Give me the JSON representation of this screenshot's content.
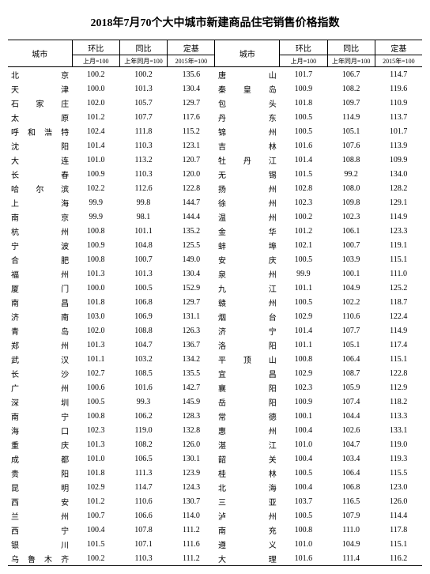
{
  "title": "2018年7月70个大中城市新建商品住宅销售价格指数",
  "headers": {
    "city": "城市",
    "mom": "环比",
    "yoy": "同比",
    "base": "定基",
    "mom_sub": "上月=100",
    "yoy_sub": "上年同月=100",
    "base_sub": "2015年=100"
  },
  "left": [
    {
      "city": "北　　京",
      "mom": "100.2",
      "yoy": "100.2",
      "base": "135.6"
    },
    {
      "city": "天　　津",
      "mom": "100.0",
      "yoy": "101.3",
      "base": "130.4"
    },
    {
      "city": "石 家 庄",
      "mom": "102.0",
      "yoy": "105.7",
      "base": "129.7"
    },
    {
      "city": "太　　原",
      "mom": "101.2",
      "yoy": "107.7",
      "base": "117.6"
    },
    {
      "city": "呼和浩特",
      "mom": "102.4",
      "yoy": "111.8",
      "base": "115.2"
    },
    {
      "city": "沈　　阳",
      "mom": "101.4",
      "yoy": "110.3",
      "base": "123.1"
    },
    {
      "city": "大　　连",
      "mom": "101.0",
      "yoy": "113.2",
      "base": "120.7"
    },
    {
      "city": "长　　春",
      "mom": "100.9",
      "yoy": "110.3",
      "base": "120.0"
    },
    {
      "city": "哈 尔 滨",
      "mom": "102.2",
      "yoy": "112.6",
      "base": "122.8"
    },
    {
      "city": "上　　海",
      "mom": "99.9",
      "yoy": "99.8",
      "base": "144.7"
    },
    {
      "city": "南　　京",
      "mom": "99.9",
      "yoy": "98.1",
      "base": "144.4"
    },
    {
      "city": "杭　　州",
      "mom": "100.8",
      "yoy": "101.1",
      "base": "135.2"
    },
    {
      "city": "宁　　波",
      "mom": "100.9",
      "yoy": "104.8",
      "base": "125.5"
    },
    {
      "city": "合　　肥",
      "mom": "100.8",
      "yoy": "100.7",
      "base": "149.0"
    },
    {
      "city": "福　　州",
      "mom": "101.3",
      "yoy": "101.3",
      "base": "130.4"
    },
    {
      "city": "厦　　门",
      "mom": "100.0",
      "yoy": "100.5",
      "base": "152.9"
    },
    {
      "city": "南　　昌",
      "mom": "101.8",
      "yoy": "106.8",
      "base": "129.7"
    },
    {
      "city": "济　　南",
      "mom": "103.0",
      "yoy": "106.9",
      "base": "131.1"
    },
    {
      "city": "青　　岛",
      "mom": "102.0",
      "yoy": "108.8",
      "base": "126.3"
    },
    {
      "city": "郑　　州",
      "mom": "101.3",
      "yoy": "104.7",
      "base": "136.7"
    },
    {
      "city": "武　　汉",
      "mom": "101.1",
      "yoy": "103.2",
      "base": "134.2"
    },
    {
      "city": "长　　沙",
      "mom": "102.7",
      "yoy": "108.5",
      "base": "135.5"
    },
    {
      "city": "广　　州",
      "mom": "100.6",
      "yoy": "101.6",
      "base": "142.7"
    },
    {
      "city": "深　　圳",
      "mom": "100.5",
      "yoy": "99.3",
      "base": "145.9"
    },
    {
      "city": "南　　宁",
      "mom": "100.8",
      "yoy": "106.2",
      "base": "128.3"
    },
    {
      "city": "海　　口",
      "mom": "102.3",
      "yoy": "119.0",
      "base": "132.8"
    },
    {
      "city": "重　　庆",
      "mom": "101.3",
      "yoy": "108.2",
      "base": "126.0"
    },
    {
      "city": "成　　都",
      "mom": "101.0",
      "yoy": "106.5",
      "base": "130.1"
    },
    {
      "city": "贵　　阳",
      "mom": "101.8",
      "yoy": "111.3",
      "base": "123.9"
    },
    {
      "city": "昆　　明",
      "mom": "102.9",
      "yoy": "114.7",
      "base": "124.3"
    },
    {
      "city": "西　　安",
      "mom": "101.2",
      "yoy": "110.6",
      "base": "130.7"
    },
    {
      "city": "兰　　州",
      "mom": "100.7",
      "yoy": "106.6",
      "base": "114.0"
    },
    {
      "city": "西　　宁",
      "mom": "100.4",
      "yoy": "107.8",
      "base": "111.2"
    },
    {
      "city": "银　　川",
      "mom": "101.5",
      "yoy": "107.1",
      "base": "111.6"
    },
    {
      "city": "乌鲁木齐",
      "mom": "100.2",
      "yoy": "110.3",
      "base": "111.2"
    }
  ],
  "right": [
    {
      "city": "唐　　山",
      "mom": "101.7",
      "yoy": "106.7",
      "base": "114.7"
    },
    {
      "city": "秦 皇 岛",
      "mom": "100.9",
      "yoy": "108.2",
      "base": "119.6"
    },
    {
      "city": "包　　头",
      "mom": "101.8",
      "yoy": "109.7",
      "base": "110.9"
    },
    {
      "city": "丹　　东",
      "mom": "100.5",
      "yoy": "114.9",
      "base": "113.7"
    },
    {
      "city": "锦　　州",
      "mom": "100.5",
      "yoy": "105.1",
      "base": "101.7"
    },
    {
      "city": "吉　　林",
      "mom": "101.6",
      "yoy": "107.6",
      "base": "113.9"
    },
    {
      "city": "牡 丹 江",
      "mom": "101.4",
      "yoy": "108.8",
      "base": "109.9"
    },
    {
      "city": "无　　锡",
      "mom": "101.5",
      "yoy": "99.2",
      "base": "134.0"
    },
    {
      "city": "扬　　州",
      "mom": "102.8",
      "yoy": "108.0",
      "base": "128.2"
    },
    {
      "city": "徐　　州",
      "mom": "102.3",
      "yoy": "109.8",
      "base": "129.1"
    },
    {
      "city": "温　　州",
      "mom": "100.2",
      "yoy": "102.3",
      "base": "114.9"
    },
    {
      "city": "金　　华",
      "mom": "101.2",
      "yoy": "106.1",
      "base": "123.3"
    },
    {
      "city": "蚌　　埠",
      "mom": "102.1",
      "yoy": "100.7",
      "base": "119.1"
    },
    {
      "city": "安　　庆",
      "mom": "100.5",
      "yoy": "103.9",
      "base": "115.1"
    },
    {
      "city": "泉　　州",
      "mom": "99.9",
      "yoy": "100.1",
      "base": "111.0"
    },
    {
      "city": "九　　江",
      "mom": "101.1",
      "yoy": "104.9",
      "base": "125.2"
    },
    {
      "city": "赣　　州",
      "mom": "100.5",
      "yoy": "102.2",
      "base": "118.7"
    },
    {
      "city": "烟　　台",
      "mom": "102.9",
      "yoy": "110.6",
      "base": "122.4"
    },
    {
      "city": "济　　宁",
      "mom": "101.4",
      "yoy": "107.7",
      "base": "114.9"
    },
    {
      "city": "洛　　阳",
      "mom": "101.1",
      "yoy": "105.1",
      "base": "117.4"
    },
    {
      "city": "平 顶 山",
      "mom": "100.8",
      "yoy": "106.4",
      "base": "115.1"
    },
    {
      "city": "宜　　昌",
      "mom": "102.9",
      "yoy": "108.7",
      "base": "122.8"
    },
    {
      "city": "襄　　阳",
      "mom": "102.3",
      "yoy": "105.9",
      "base": "112.9"
    },
    {
      "city": "岳　　阳",
      "mom": "100.9",
      "yoy": "107.4",
      "base": "118.2"
    },
    {
      "city": "常　　德",
      "mom": "100.1",
      "yoy": "104.4",
      "base": "113.3"
    },
    {
      "city": "惠　　州",
      "mom": "100.4",
      "yoy": "102.6",
      "base": "133.1"
    },
    {
      "city": "湛　　江",
      "mom": "101.0",
      "yoy": "104.7",
      "base": "119.0"
    },
    {
      "city": "韶　　关",
      "mom": "100.4",
      "yoy": "103.4",
      "base": "119.3"
    },
    {
      "city": "桂　　林",
      "mom": "100.5",
      "yoy": "106.4",
      "base": "115.5"
    },
    {
      "city": "北　　海",
      "mom": "100.4",
      "yoy": "106.8",
      "base": "123.0"
    },
    {
      "city": "三　　亚",
      "mom": "103.7",
      "yoy": "116.5",
      "base": "126.0"
    },
    {
      "city": "泸　　州",
      "mom": "100.5",
      "yoy": "107.9",
      "base": "114.4"
    },
    {
      "city": "南　　充",
      "mom": "100.8",
      "yoy": "111.0",
      "base": "117.8"
    },
    {
      "city": "遵　　义",
      "mom": "101.0",
      "yoy": "104.9",
      "base": "115.1"
    },
    {
      "city": "大　　理",
      "mom": "101.6",
      "yoy": "111.4",
      "base": "116.2"
    }
  ]
}
